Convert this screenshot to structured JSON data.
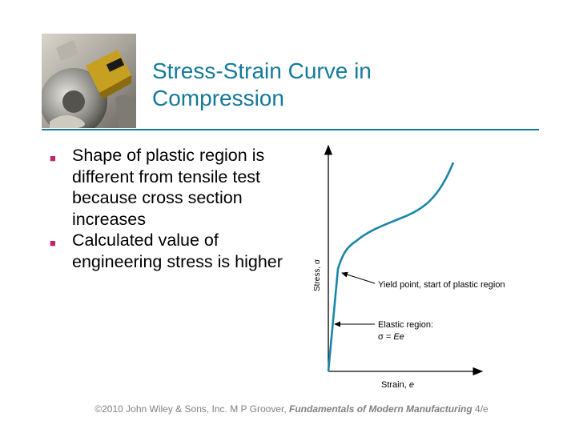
{
  "slide": {
    "title_line1": "Stress-Strain Curve in",
    "title_line2": "Compression",
    "accent_color": "#157a9a",
    "bullet_color": "#c0266d",
    "bullets": [
      "Shape of plastic region is different from tensile test because cross section increases",
      "Calculated value of engineering stress is higher"
    ]
  },
  "diagram": {
    "y_axis_label": "Stress, σ",
    "x_axis_label_prefix": "Strain, ",
    "x_axis_label_symbol": "e",
    "yield_label": "Yield point, start of plastic region",
    "elastic_label_line1": "Elastic region:",
    "elastic_label_line2_prefix": "σ = ",
    "elastic_label_line2_formula": "Ee"
  },
  "footer": {
    "prefix": "©2010 John Wiley & Sons, Inc.  M P Groover, ",
    "book": "Fundamentals of Modern Manufacturing",
    "suffix": " 4/e"
  }
}
